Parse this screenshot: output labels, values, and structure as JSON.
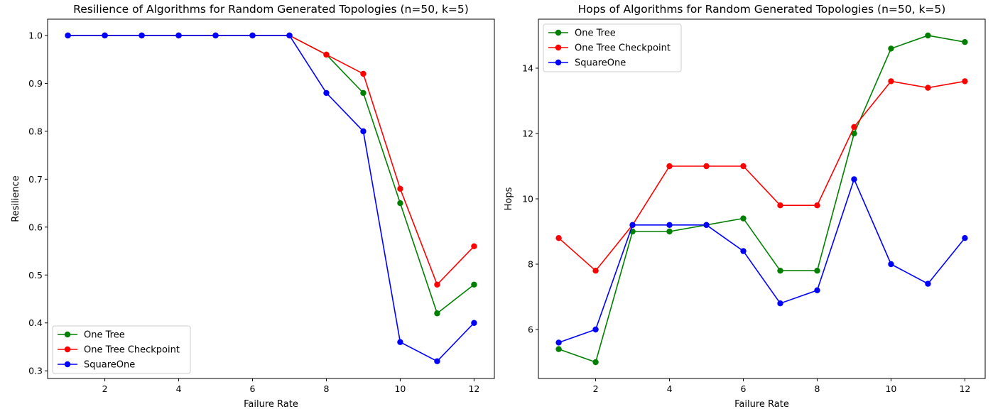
{
  "chart_data": [
    {
      "type": "line",
      "title": "Resilience of Algorithms for Random Generated Topologies (n=50, k=5)",
      "xlabel": "Failure Rate",
      "ylabel": "Resilience",
      "x": [
        1,
        2,
        3,
        4,
        5,
        6,
        7,
        8,
        9,
        10,
        11,
        12
      ],
      "xlim": [
        0.45,
        12.55
      ],
      "ylim": [
        0.284,
        1.034
      ],
      "xticks": [
        2,
        4,
        6,
        8,
        10,
        12
      ],
      "yticks": [
        0.3,
        0.4,
        0.5,
        0.6,
        0.7,
        0.8,
        0.9,
        1.0
      ],
      "ytick_labels": [
        "0.3",
        "0.4",
        "0.5",
        "0.6",
        "0.7",
        "0.8",
        "0.9",
        "1.0"
      ],
      "grid": false,
      "legend_position": "lower-left",
      "series": [
        {
          "name": "One Tree",
          "color": "#008000",
          "values": [
            1.0,
            1.0,
            1.0,
            1.0,
            1.0,
            1.0,
            1.0,
            0.96,
            0.88,
            0.65,
            0.42,
            0.48
          ]
        },
        {
          "name": "One Tree Checkpoint",
          "color": "#ff0000",
          "values": [
            1.0,
            1.0,
            1.0,
            1.0,
            1.0,
            1.0,
            1.0,
            0.96,
            0.92,
            0.68,
            0.48,
            0.56
          ]
        },
        {
          "name": "SquareOne",
          "color": "#0000ff",
          "values": [
            1.0,
            1.0,
            1.0,
            1.0,
            1.0,
            1.0,
            1.0,
            0.88,
            0.8,
            0.36,
            0.32,
            0.4
          ]
        }
      ]
    },
    {
      "type": "line",
      "title": "Hops of Algorithms for Random Generated Topologies (n=50, k=5)",
      "xlabel": "Failure Rate",
      "ylabel": "Hops",
      "x": [
        1,
        2,
        3,
        4,
        5,
        6,
        7,
        8,
        9,
        10,
        11,
        12
      ],
      "xlim": [
        0.45,
        12.55
      ],
      "ylim": [
        4.5,
        15.5
      ],
      "xticks": [
        2,
        4,
        6,
        8,
        10,
        12
      ],
      "yticks": [
        6,
        8,
        10,
        12,
        14
      ],
      "ytick_labels": [
        "6",
        "8",
        "10",
        "12",
        "14"
      ],
      "grid": false,
      "legend_position": "upper-left",
      "series": [
        {
          "name": "One Tree",
          "color": "#008000",
          "values": [
            5.4,
            5.0,
            9.0,
            9.0,
            9.2,
            9.4,
            7.8,
            7.8,
            12.0,
            14.6,
            15.0,
            14.8
          ]
        },
        {
          "name": "One Tree Checkpoint",
          "color": "#ff0000",
          "values": [
            8.8,
            7.8,
            9.2,
            11.0,
            11.0,
            11.0,
            9.8,
            9.8,
            12.2,
            13.6,
            13.4,
            13.6
          ]
        },
        {
          "name": "SquareOne",
          "color": "#0000ff",
          "values": [
            5.6,
            6.0,
            9.2,
            9.2,
            9.2,
            8.4,
            6.8,
            7.2,
            10.6,
            8.0,
            7.4,
            8.8
          ]
        }
      ]
    }
  ]
}
